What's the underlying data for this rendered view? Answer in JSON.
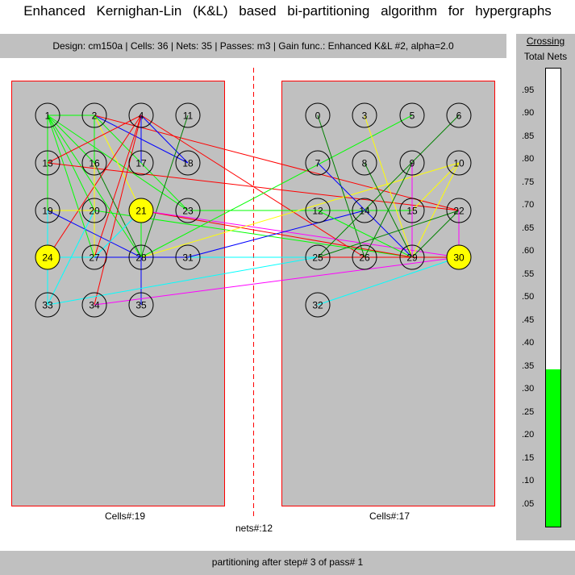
{
  "title": "Enhanced Kernighan-Lin (K&L) based bi-partitioning algorithm for hypergraphs",
  "info": "Design: cm150a  |  Cells: 36  |  Nets: 35  |  Passes: m3  |  Gain func.: Enhanced K&L #2, alpha=2.0",
  "meter": {
    "heading": "Crossing",
    "subheading": "Total Nets",
    "value": 0.343,
    "fill_color": "#00ff00",
    "ticks": [
      ".95",
      ".90",
      ".85",
      ".80",
      ".75",
      ".70",
      ".65",
      ".60",
      ".55",
      ".50",
      ".45",
      ".40",
      ".35",
      ".30",
      ".25",
      ".20",
      ".15",
      ".10",
      ".05"
    ]
  },
  "left_partition": {
    "label": "Cells#:19"
  },
  "right_partition": {
    "label": "Cells#:17"
  },
  "nets_label": "nets#:12",
  "status": "partitioning after step# 3 of pass# 1",
  "cells": [
    {
      "id": "1",
      "c": 0,
      "r": 0
    },
    {
      "id": "2",
      "c": 1,
      "r": 0
    },
    {
      "id": "4",
      "c": 2,
      "r": 0
    },
    {
      "id": "11",
      "c": 3,
      "r": 0
    },
    {
      "id": "13",
      "c": 0,
      "r": 1
    },
    {
      "id": "16",
      "c": 1,
      "r": 1
    },
    {
      "id": "17",
      "c": 2,
      "r": 1
    },
    {
      "id": "18",
      "c": 3,
      "r": 1
    },
    {
      "id": "19",
      "c": 0,
      "r": 2
    },
    {
      "id": "20",
      "c": 1,
      "r": 2
    },
    {
      "id": "21",
      "c": 2,
      "r": 2,
      "hl": true
    },
    {
      "id": "23",
      "c": 3,
      "r": 2
    },
    {
      "id": "24",
      "c": 0,
      "r": 3,
      "hl": true
    },
    {
      "id": "27",
      "c": 1,
      "r": 3
    },
    {
      "id": "28",
      "c": 2,
      "r": 3
    },
    {
      "id": "31",
      "c": 3,
      "r": 3
    },
    {
      "id": "33",
      "c": 0,
      "r": 4
    },
    {
      "id": "34",
      "c": 1,
      "r": 4
    },
    {
      "id": "35",
      "c": 2,
      "r": 4
    },
    {
      "id": "0",
      "c": 4,
      "r": 0
    },
    {
      "id": "3",
      "c": 5,
      "r": 0
    },
    {
      "id": "5",
      "c": 6,
      "r": 0
    },
    {
      "id": "6",
      "c": 7,
      "r": 0
    },
    {
      "id": "7",
      "c": 4,
      "r": 1
    },
    {
      "id": "8",
      "c": 5,
      "r": 1
    },
    {
      "id": "9",
      "c": 6,
      "r": 1
    },
    {
      "id": "10",
      "c": 7,
      "r": 1
    },
    {
      "id": "12",
      "c": 4,
      "r": 2
    },
    {
      "id": "14",
      "c": 5,
      "r": 2
    },
    {
      "id": "15",
      "c": 6,
      "r": 2
    },
    {
      "id": "22",
      "c": 7,
      "r": 2
    },
    {
      "id": "25",
      "c": 4,
      "r": 3
    },
    {
      "id": "26",
      "c": 5,
      "r": 3
    },
    {
      "id": "29",
      "c": 6,
      "r": 3
    },
    {
      "id": "30",
      "c": 7,
      "r": 3,
      "hl": true
    },
    {
      "id": "32",
      "c": 4,
      "r": 4
    }
  ],
  "edges": [
    [
      "1",
      "2",
      "#00ff00"
    ],
    [
      "1",
      "16",
      "#00ff00"
    ],
    [
      "1",
      "27",
      "#00ff00"
    ],
    [
      "1",
      "28",
      "#00ff00"
    ],
    [
      "1",
      "19",
      "#00ff00"
    ],
    [
      "1",
      "20",
      "#00ff00"
    ],
    [
      "1",
      "23",
      "#00ff00"
    ],
    [
      "2",
      "20",
      "#00ff00"
    ],
    [
      "2",
      "18",
      "#0000ff"
    ],
    [
      "2",
      "21",
      "#ffff00"
    ],
    [
      "2",
      "22",
      "#ff0000"
    ],
    [
      "2",
      "23",
      "#00ff00"
    ],
    [
      "4",
      "13",
      "#ff0000"
    ],
    [
      "4",
      "24",
      "#ff0000"
    ],
    [
      "4",
      "34",
      "#ff0000"
    ],
    [
      "4",
      "27",
      "#ff0000"
    ],
    [
      "4",
      "17",
      "#0000ff"
    ],
    [
      "4",
      "18",
      "#0000ff"
    ],
    [
      "4",
      "26",
      "#ff0000"
    ],
    [
      "11",
      "28",
      "#008000"
    ],
    [
      "13",
      "22",
      "#ff0000"
    ],
    [
      "16",
      "27",
      "#ffff00"
    ],
    [
      "16",
      "28",
      "#008000"
    ],
    [
      "19",
      "20",
      "#ffff00"
    ],
    [
      "19",
      "28",
      "#0000ff"
    ],
    [
      "19",
      "24",
      "#00ffff"
    ],
    [
      "20",
      "29",
      "#00ff00"
    ],
    [
      "21",
      "27",
      "#00ffff"
    ],
    [
      "21",
      "29",
      "#ff0000"
    ],
    [
      "21",
      "30",
      "#ff00ff"
    ],
    [
      "21",
      "28",
      "#00ff00"
    ],
    [
      "23",
      "12",
      "#00ff00"
    ],
    [
      "23",
      "15",
      "#00ff00"
    ],
    [
      "24",
      "27",
      "#00ffff"
    ],
    [
      "24",
      "25",
      "#00ffff"
    ],
    [
      "27",
      "28",
      "#0000ff"
    ],
    [
      "28",
      "5",
      "#00ff00"
    ],
    [
      "28",
      "10",
      "#ffff00"
    ],
    [
      "28",
      "31",
      "#0000ff"
    ],
    [
      "28",
      "35",
      "#0000ff"
    ],
    [
      "31",
      "14",
      "#0000ff"
    ],
    [
      "33",
      "25",
      "#00ffff"
    ],
    [
      "33",
      "24",
      "#00ffff"
    ],
    [
      "33",
      "20",
      "#00ffff"
    ],
    [
      "34",
      "30",
      "#ff00ff"
    ],
    [
      "0",
      "26",
      "#008000"
    ],
    [
      "3",
      "29",
      "#ffff00"
    ],
    [
      "6",
      "25",
      "#008000"
    ],
    [
      "7",
      "29",
      "#0000ff"
    ],
    [
      "8",
      "29",
      "#008000"
    ],
    [
      "9",
      "29",
      "#ff00ff"
    ],
    [
      "9",
      "26",
      "#008000"
    ],
    [
      "10",
      "29",
      "#ffff00"
    ],
    [
      "10",
      "15",
      "#ffff00"
    ],
    [
      "12",
      "29",
      "#00ff00"
    ],
    [
      "22",
      "25",
      "#008000"
    ],
    [
      "22",
      "29",
      "#008000"
    ],
    [
      "22",
      "30",
      "#ff00ff"
    ],
    [
      "25",
      "30",
      "#ff0000"
    ],
    [
      "32",
      "30",
      "#00ffff"
    ]
  ]
}
